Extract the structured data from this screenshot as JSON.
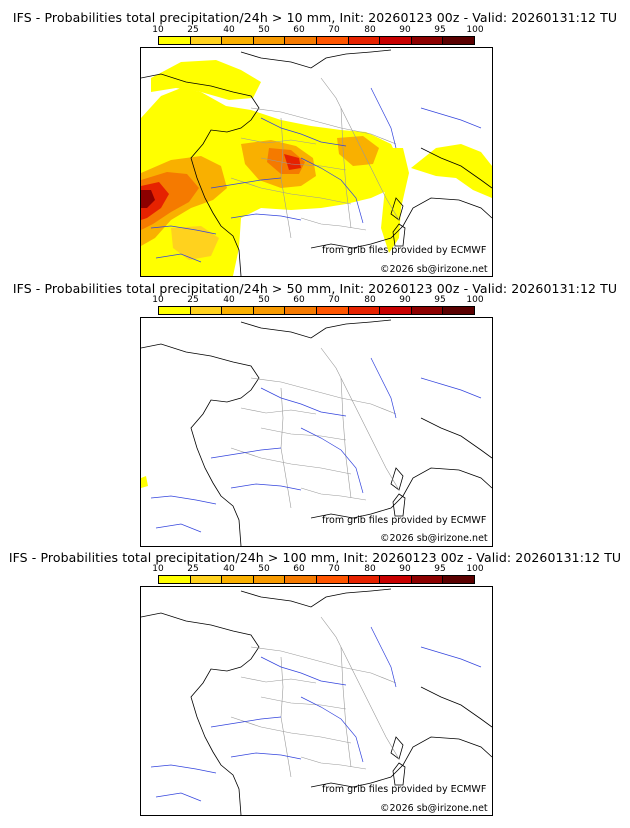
{
  "colorbar": {
    "ticks": [
      "10",
      "25",
      "40",
      "50",
      "60",
      "70",
      "80",
      "90",
      "95",
      "100"
    ],
    "colors": [
      "#ffff00",
      "#ffd21e",
      "#f9b000",
      "#f79a00",
      "#f57a00",
      "#ff5500",
      "#e62200",
      "#c80000",
      "#8c0000",
      "#5a0000"
    ]
  },
  "panels": [
    {
      "title": "IFS - Probabilities total precipitation/24h > 10 mm, Init: 20260123 00z - Valid: 20260131:12 TU",
      "credit_source": "from grib files provided by ECMWF",
      "credit_copyright": "©2026 sb@irizone.net"
    },
    {
      "title": "IFS - Probabilities total precipitation/24h > 50 mm, Init: 20260123 00z - Valid: 20260131:12 TU",
      "credit_source": "from grib files provided by ECMWF",
      "credit_copyright": "©2026 sb@irizone.net"
    },
    {
      "title": "IFS - Probabilities total precipitation/24h > 100 mm, Init: 20260123 00z - Valid: 20260131:12 TU",
      "credit_source": "from grib files provided by ECMWF",
      "credit_copyright": "©2026 sb@irizone.net"
    }
  ],
  "colors": {
    "coast": "#000000",
    "borders": "#9a9a9a",
    "rivers": "#3344dd"
  }
}
